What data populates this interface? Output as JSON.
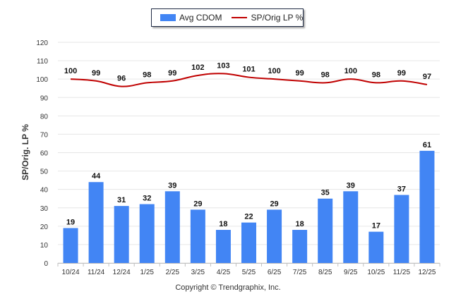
{
  "chart_data": {
    "type": "bar+line",
    "title": "",
    "ylabel": "SP/Orig. LP %",
    "xlabel": "",
    "ylim": [
      0,
      120
    ],
    "yticks": [
      0,
      10,
      20,
      30,
      40,
      50,
      60,
      70,
      80,
      90,
      100,
      110,
      120
    ],
    "grid": true,
    "legend_position": "top-center",
    "categories": [
      "10/24",
      "11/24",
      "12/24",
      "1/25",
      "2/25",
      "3/25",
      "4/25",
      "5/25",
      "6/25",
      "7/25",
      "8/25",
      "9/25",
      "10/25",
      "11/25",
      "12/25"
    ],
    "series": [
      {
        "name": "Avg CDOM",
        "kind": "bar",
        "color": "#4285f4",
        "values": [
          19,
          44,
          31,
          32,
          39,
          29,
          18,
          22,
          29,
          18,
          35,
          39,
          17,
          37,
          61
        ]
      },
      {
        "name": "SP/Orig LP %",
        "kind": "line",
        "color": "#c00000",
        "values": [
          100,
          99,
          96,
          98,
          99,
          102,
          103,
          101,
          100,
          99,
          98,
          100,
          98,
          99,
          97
        ]
      }
    ]
  },
  "copyright": "Copyright © Trendgraphix, Inc."
}
